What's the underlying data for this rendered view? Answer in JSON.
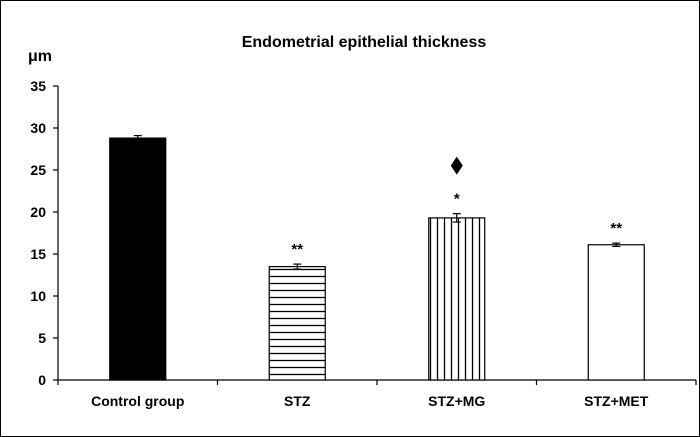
{
  "chart_data": {
    "type": "bar",
    "title": "Endometrial epithelial thickness",
    "ylabel": "μm",
    "xlabel": "",
    "ylim": [
      0,
      35
    ],
    "yticks": [
      0,
      5,
      10,
      15,
      20,
      25,
      30,
      35
    ],
    "categories": [
      "Control group",
      "STZ",
      "STZ+MG",
      "STZ+MET"
    ],
    "values": [
      28.8,
      13.5,
      19.3,
      16.1
    ],
    "errors": [
      0.3,
      0.3,
      0.5,
      0.2
    ],
    "annotations": [
      "",
      "**",
      "*",
      "**"
    ],
    "extra_marker": {
      "category": "STZ+MG",
      "symbol": "diamond"
    },
    "fills": [
      "solid",
      "horizontal-stripes",
      "vertical-stripes",
      "white"
    ],
    "bar_color": "#000000",
    "grid": false
  }
}
